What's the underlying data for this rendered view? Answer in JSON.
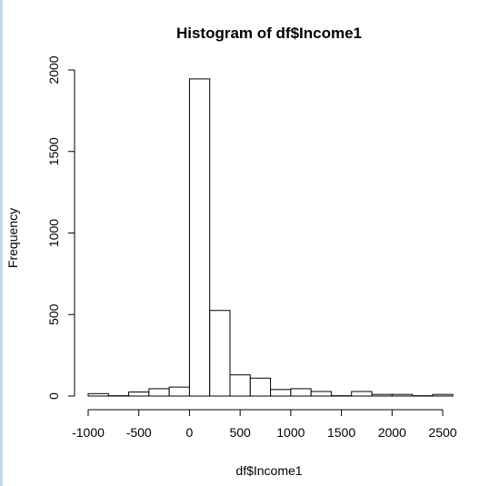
{
  "chart_data": {
    "type": "bar",
    "title": "Histogram of df$Income1",
    "xlabel": "df$Income1",
    "ylabel": "Frequency",
    "bin_width": 200,
    "bins": [
      {
        "from": -1000,
        "to": -800,
        "count": 15
      },
      {
        "from": -800,
        "to": -600,
        "count": 2
      },
      {
        "from": -600,
        "to": -400,
        "count": 25
      },
      {
        "from": -400,
        "to": -200,
        "count": 45
      },
      {
        "from": -200,
        "to": 0,
        "count": 55
      },
      {
        "from": 0,
        "to": 200,
        "count": 1945
      },
      {
        "from": 200,
        "to": 400,
        "count": 525
      },
      {
        "from": 400,
        "to": 600,
        "count": 130
      },
      {
        "from": 600,
        "to": 800,
        "count": 110
      },
      {
        "from": 800,
        "to": 1000,
        "count": 40
      },
      {
        "from": 1000,
        "to": 1200,
        "count": 45
      },
      {
        "from": 1200,
        "to": 1400,
        "count": 28
      },
      {
        "from": 1400,
        "to": 1600,
        "count": 2
      },
      {
        "from": 1600,
        "to": 1800,
        "count": 28
      },
      {
        "from": 1800,
        "to": 2000,
        "count": 10
      },
      {
        "from": 2000,
        "to": 2200,
        "count": 10
      },
      {
        "from": 2200,
        "to": 2400,
        "count": 2
      },
      {
        "from": 2400,
        "to": 2600,
        "count": 10
      }
    ],
    "x_ticks": [
      -1000,
      -500,
      0,
      500,
      1000,
      1500,
      2000,
      2500
    ],
    "x_tick_labels": [
      "-1000",
      "-500",
      "0",
      "500",
      "1000",
      "1500",
      "2000",
      "2500"
    ],
    "y_ticks": [
      0,
      500,
      1000,
      1500,
      2000
    ],
    "y_tick_labels": [
      "0",
      "500",
      "1000",
      "1500",
      "2000"
    ],
    "xlim": [
      -1000,
      2600
    ],
    "ylim": [
      0,
      2000
    ],
    "grid": false,
    "fill_color": "#ffffff",
    "stroke_color": "#000000"
  }
}
